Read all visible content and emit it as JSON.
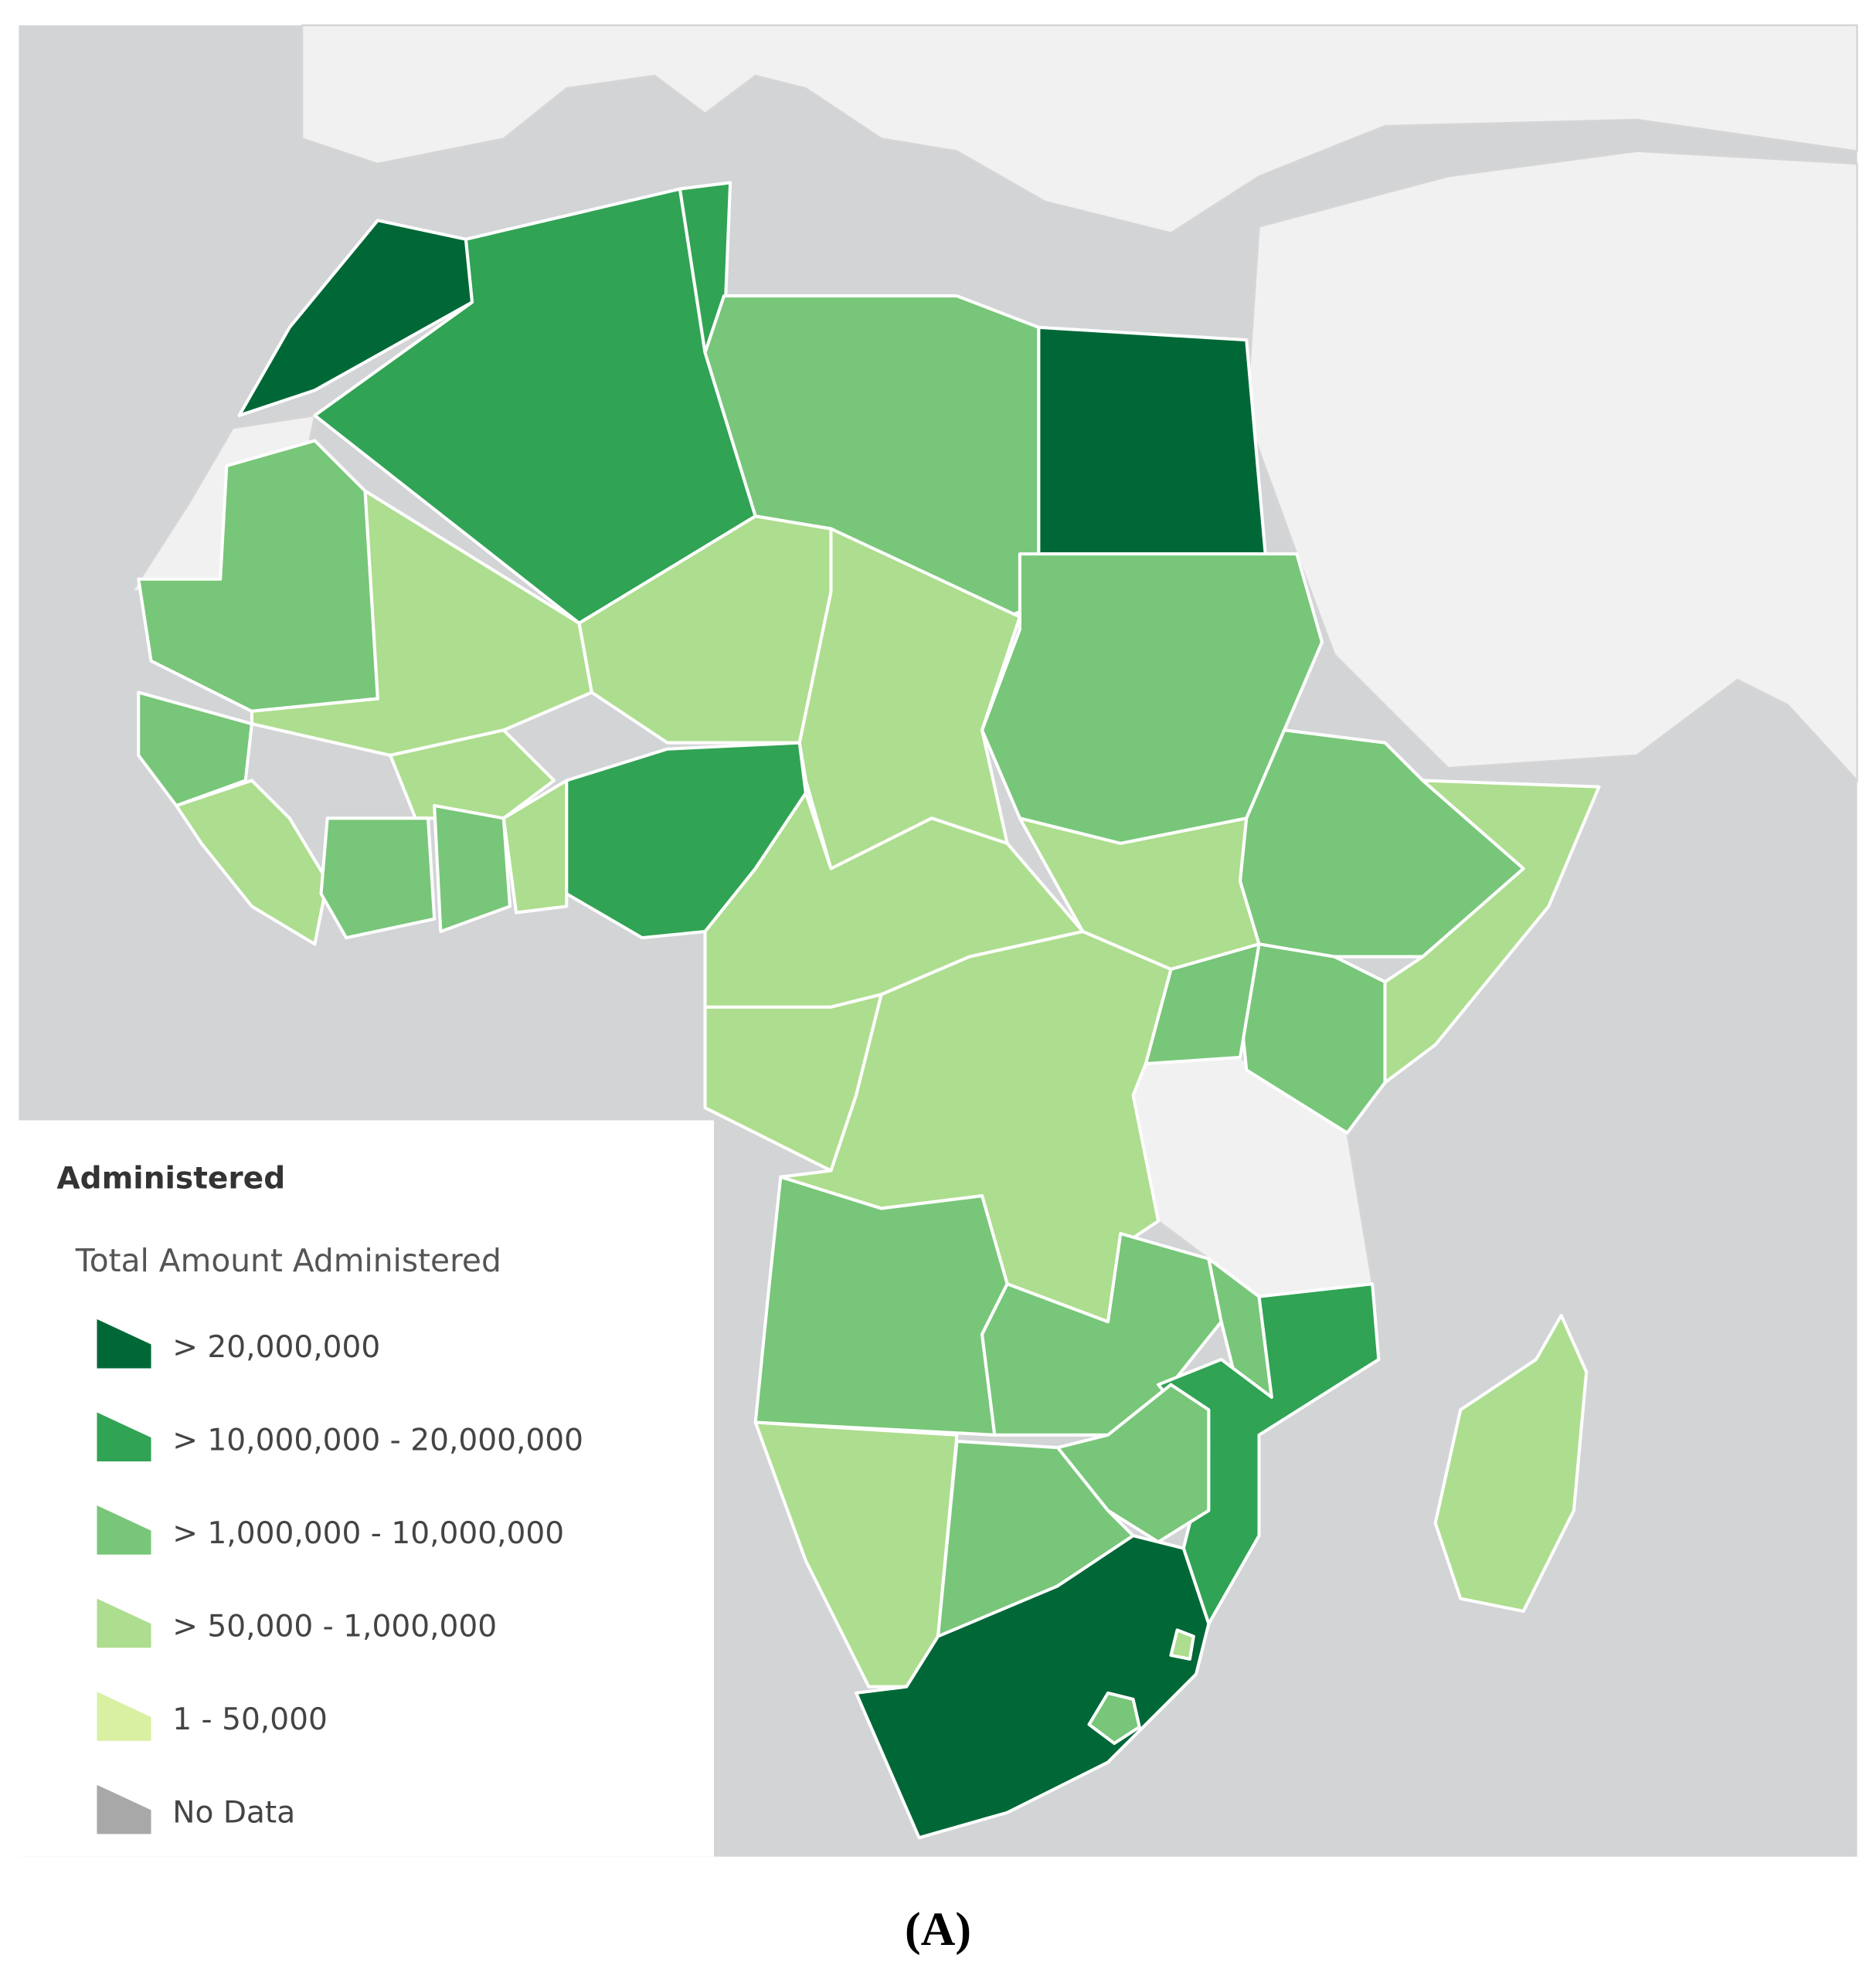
{
  "legend": {
    "title": "Administered",
    "subtitle": "Total Amount Administered",
    "items": [
      {
        "label": "> 20,000,000",
        "color": "#006837"
      },
      {
        "label": "> 10,000,000 - 20,000,000",
        "color": "#31a354"
      },
      {
        "label": "> 1,000,000 - 10,000,000",
        "color": "#78c679"
      },
      {
        "label": "> 50,000 - 1,000,000",
        "color": "#addd8e"
      },
      {
        "label": "1 - 50,000",
        "color": "#d9f0a3"
      },
      {
        "label": "No Data",
        "color": "#a8a8a8"
      }
    ]
  },
  "caption": "(A)"
}
